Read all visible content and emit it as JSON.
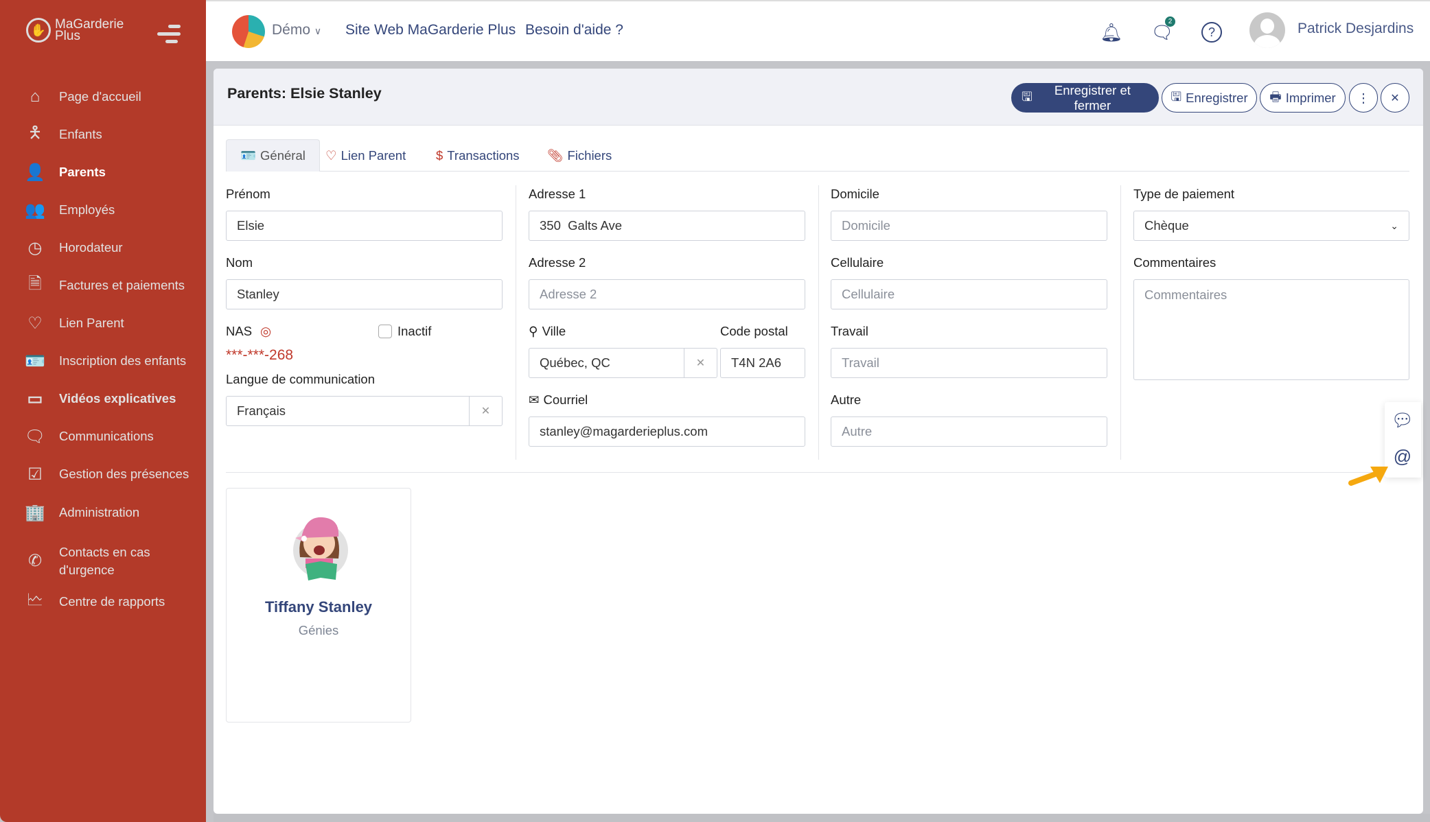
{
  "sidebar": {
    "logo": "MaGarderie Plus",
    "logo_line1": "MaGarderie",
    "logo_line2": "Plus",
    "items": [
      {
        "label": "Page d'accueil",
        "icon": "home-icon"
      },
      {
        "label": "Enfants",
        "icon": "child-icon"
      },
      {
        "label": "Parents",
        "icon": "parent-icon",
        "active": true
      },
      {
        "label": "Employés",
        "icon": "users-icon"
      },
      {
        "label": "Horodateur",
        "icon": "clock-icon"
      },
      {
        "label": "Factures et paiements",
        "icon": "invoice-icon"
      },
      {
        "label": "Lien Parent",
        "icon": "heart-icon"
      },
      {
        "label": "Inscription des enfants",
        "icon": "id-card-icon"
      },
      {
        "label": "Vidéos explicatives",
        "icon": "video-icon"
      },
      {
        "label": "Communications",
        "icon": "message-icon"
      },
      {
        "label": "Gestion des présences",
        "icon": "checklist-icon"
      },
      {
        "label": "Administration",
        "icon": "building-icon"
      },
      {
        "label": "Contacts en cas d'urgence",
        "icon": "phone-icon"
      },
      {
        "label": "Centre de rapports",
        "icon": "report-icon"
      }
    ]
  },
  "topbar": {
    "org": "Démo",
    "links": [
      "Site Web MaGarderie Plus",
      "Besoin d'aide ?"
    ],
    "messages_badge": "2",
    "user": "Patrick Desjardins"
  },
  "page": {
    "title": "Parents: Elsie Stanley",
    "buttons": {
      "save_close": "Enregistrer et fermer",
      "save": "Enregistrer",
      "print": "Imprimer"
    },
    "tabs": [
      "Général",
      "Lien Parent",
      "Transactions",
      "Fichiers"
    ]
  },
  "form": {
    "prenom_label": "Prénom",
    "prenom": "Elsie",
    "nom_label": "Nom",
    "nom": "Stanley",
    "nas_label": "NAS",
    "nas": "***-***-268",
    "inactif_label": "Inactif",
    "langue_label": "Langue de communication",
    "langue": "Français",
    "adresse1_label": "Adresse 1",
    "adresse1": "350  Galts Ave",
    "adresse2_label": "Adresse 2",
    "adresse2_placeholder": "Adresse 2",
    "ville_label": "Ville",
    "ville": "Québec, QC",
    "code_postal_label": "Code postal",
    "code_postal": "T4N 2A6",
    "courriel_label": "Courriel",
    "courriel": "stanley@magarderieplus.com",
    "domicile_label": "Domicile",
    "domicile_placeholder": "Domicile",
    "cellulaire_label": "Cellulaire",
    "cellulaire_placeholder": "Cellulaire",
    "travail_label": "Travail",
    "travail_placeholder": "Travail",
    "autre_label": "Autre",
    "autre_placeholder": "Autre",
    "paiement_label": "Type de paiement",
    "paiement": "Chèque",
    "commentaires_label": "Commentaires",
    "commentaires_placeholder": "Commentaires"
  },
  "children": [
    {
      "name": "Tiffany Stanley",
      "group": "Génies"
    }
  ],
  "colors": {
    "sidebar": "#b33a29",
    "primary": "#34467a",
    "accent_red": "#c0392b",
    "arrow": "#f5a80f"
  }
}
